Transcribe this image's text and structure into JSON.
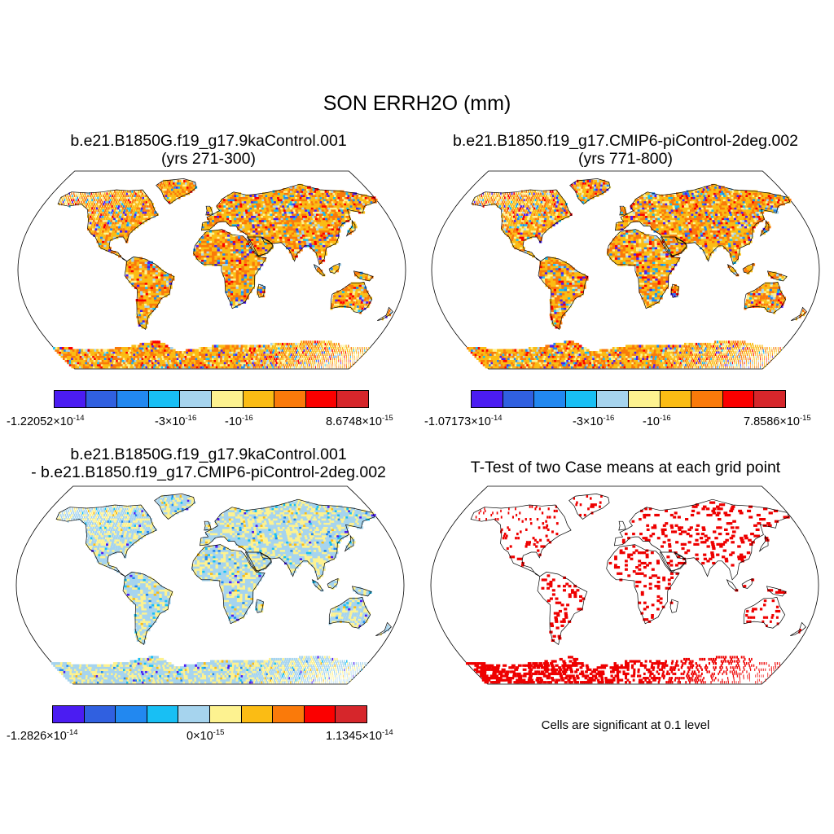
{
  "title": "SON ERRH2O (mm)",
  "panels": [
    {
      "id": "case1",
      "title_line1": "b.e21.B1850G.f19_g17.9kaControl.001",
      "title_line2": "(yrs 271-300)",
      "kind": "field",
      "colorbar": {
        "labels": [
          {
            "base": "-1.22052×10",
            "exp": "-14"
          },
          {
            "base": "-3×10",
            "exp": "-16"
          },
          {
            "base": "-10",
            "exp": "-16"
          },
          {
            "base": "8.6748×10",
            "exp": "-15"
          }
        ]
      }
    },
    {
      "id": "case2",
      "title_line1": "b.e21.B1850.f19_g17.CMIP6-piControl-2deg.002",
      "title_line2": "(yrs 771-800)",
      "kind": "field",
      "colorbar": {
        "labels": [
          {
            "base": "-1.07173×10",
            "exp": "-14"
          },
          {
            "base": "-3×10",
            "exp": "-16"
          },
          {
            "base": "-10",
            "exp": "-16"
          },
          {
            "base": "7.8586×10",
            "exp": "-15"
          }
        ]
      }
    },
    {
      "id": "diff",
      "title_line1": "b.e21.B1850G.f19_g17.9kaControl.001",
      "title_line2": "- b.e21.B1850.f19_g17.CMIP6-piControl-2deg.002",
      "kind": "diff",
      "colorbar": {
        "labels": [
          {
            "base": "-1.2826×10",
            "exp": "-14"
          },
          {
            "base": "0×10",
            "exp": "-15"
          },
          {
            "base": "1.1345×10",
            "exp": "-14"
          }
        ]
      }
    },
    {
      "id": "ttest",
      "title_line1": "T-Test of two Case means at each grid point",
      "kind": "ttest",
      "note": "Cells are significant at 0.1 level"
    }
  ],
  "colors": {
    "palette": [
      "#4b1cf2",
      "#3060e0",
      "#2288f0",
      "#18bff4",
      "#a6d4ee",
      "#fdf290",
      "#fbbc14",
      "#fa7a0a",
      "#fb0000",
      "#d6262b"
    ],
    "significant": "#ee0000",
    "coastline": "#000000"
  }
}
